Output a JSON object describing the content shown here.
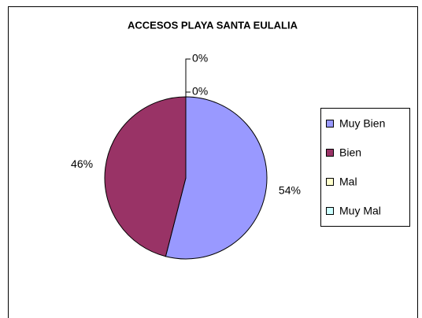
{
  "chart_data": {
    "type": "pie",
    "title": "ACCESOS PLAYA SANTA EULALIA",
    "categories": [
      "Muy Bien",
      "Bien",
      "Mal",
      "Muy Mal"
    ],
    "values": [
      54,
      46,
      0,
      0
    ],
    "value_labels": [
      "54%",
      "46%",
      "0%",
      "0%"
    ],
    "colors": [
      "#9999ff",
      "#993366",
      "#ffffcc",
      "#ccffff"
    ],
    "legend": "right"
  }
}
